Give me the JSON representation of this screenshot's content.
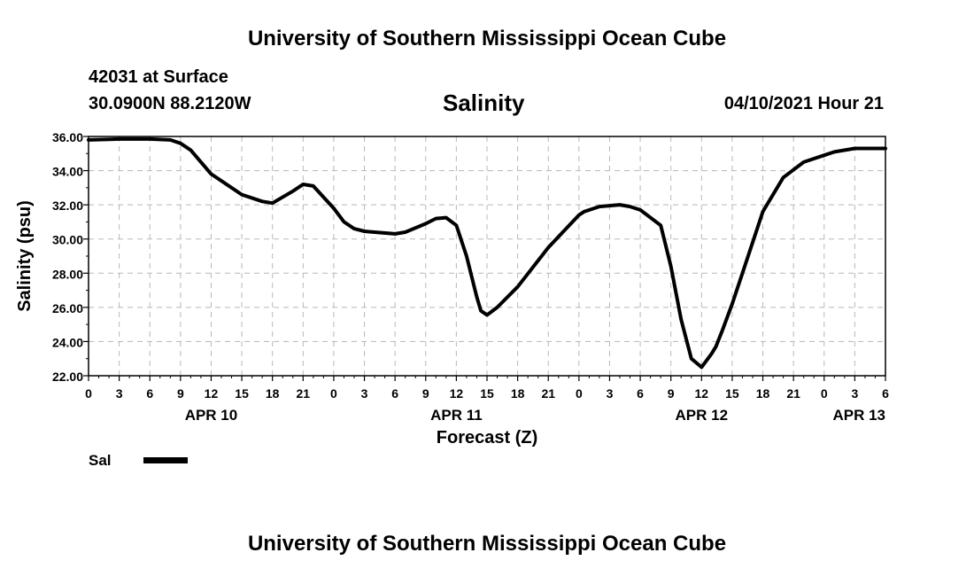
{
  "header": {
    "top_title": "University of Southern Mississippi Ocean Cube",
    "station": "42031 at Surface",
    "coords": "30.0900N  88.2120W",
    "variable": "Salinity",
    "datetime": "04/10/2021 Hour 21",
    "bottom_title": "University of Southern Mississippi Ocean Cube"
  },
  "chart_data": {
    "type": "line",
    "title": "Salinity",
    "xlabel": "Forecast (Z)",
    "ylabel": "Salinity (psu)",
    "xlim": [
      0,
      78
    ],
    "ylim": [
      22,
      36
    ],
    "grid": true,
    "yticks": [
      "22.00",
      "24.00",
      "26.00",
      "28.00",
      "30.00",
      "32.00",
      "34.00",
      "36.00"
    ],
    "ytick_values": [
      22,
      24,
      26,
      28,
      30,
      32,
      34,
      36
    ],
    "xtick_labels": [
      "0",
      "3",
      "6",
      "9",
      "12",
      "15",
      "18",
      "21",
      "0",
      "3",
      "6",
      "9",
      "12",
      "15",
      "18",
      "21",
      "0",
      "3",
      "6",
      "9",
      "12",
      "15",
      "18",
      "21",
      "0",
      "3",
      "6"
    ],
    "date_labels": [
      {
        "label": "APR 10",
        "x": 12
      },
      {
        "label": "APR 11",
        "x": 36
      },
      {
        "label": "APR 12",
        "x": 60
      },
      {
        "label": "APR 13",
        "x": 78
      }
    ],
    "legend": [
      {
        "name": "Sal",
        "color": "#000000"
      }
    ],
    "series": [
      {
        "name": "Sal",
        "x": [
          0,
          3,
          6,
          8,
          9,
          10,
          12,
          15,
          17,
          18,
          20,
          21,
          22,
          24,
          25,
          26,
          27,
          28,
          30,
          31,
          33,
          34,
          35,
          36,
          37,
          38,
          38.4,
          39,
          40,
          42,
          45,
          48,
          48.5,
          50,
          51,
          52,
          53,
          54,
          56,
          57,
          58,
          59,
          60,
          61,
          61.4,
          62,
          63,
          64,
          66,
          68,
          70,
          72,
          73,
          75,
          76,
          77,
          78
        ],
        "values": [
          35.8,
          35.85,
          35.85,
          35.8,
          35.6,
          35.2,
          33.8,
          32.6,
          32.2,
          32.1,
          32.8,
          33.2,
          33.1,
          31.8,
          31.0,
          30.6,
          30.45,
          30.4,
          30.3,
          30.4,
          30.9,
          31.2,
          31.25,
          30.8,
          29.0,
          26.6,
          25.8,
          25.55,
          26.0,
          27.2,
          29.5,
          31.4,
          31.6,
          31.9,
          31.95,
          32.0,
          31.9,
          31.7,
          30.8,
          28.4,
          25.3,
          23.0,
          22.5,
          23.3,
          23.7,
          24.6,
          26.2,
          28.0,
          31.6,
          33.6,
          34.5,
          34.9,
          35.1,
          35.3,
          35.3,
          35.3,
          35.3
        ]
      }
    ]
  }
}
